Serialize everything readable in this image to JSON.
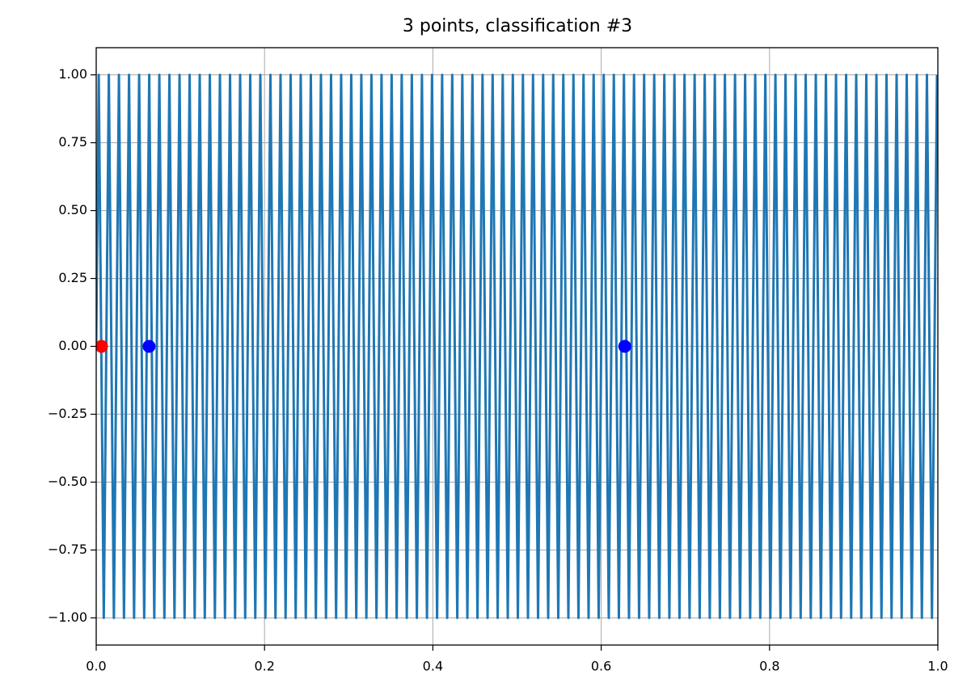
{
  "chart_data": {
    "type": "line",
    "title": "3 points, classification #3",
    "xlim": [
      0,
      1
    ],
    "ylim": [
      -1.1,
      1.1
    ],
    "grid": true,
    "xticks": [
      {
        "value": 0,
        "label": "0.0"
      },
      0.2,
      0.4,
      0.6,
      0.8,
      {
        "value": 1,
        "label": "1.0"
      }
    ],
    "yticks": [
      {
        "value": -1,
        "label": "−1.00"
      },
      {
        "value": -0.75,
        "label": "−0.75"
      },
      {
        "value": -0.5,
        "label": "−0.50"
      },
      {
        "value": -0.25,
        "label": "−0.25"
      },
      {
        "value": 0,
        "label": "0.00"
      },
      {
        "value": 0.25,
        "label": "0.25"
      },
      {
        "value": 0.5,
        "label": "0.50"
      },
      {
        "value": 0.75,
        "label": "0.75"
      },
      {
        "value": 1,
        "label": "1.00"
      }
    ],
    "series": [
      {
        "color": "#1f77b4",
        "x": [
          0,
          0.003,
          0.009,
          0.015,
          0.021,
          0.027,
          0.033,
          0.039,
          0.045,
          0.051,
          0.057,
          0.063,
          0.069,
          0.075,
          0.081,
          0.087,
          0.093,
          0.099,
          0.105,
          0.111,
          0.117,
          0.123,
          0.129,
          0.135,
          0.141,
          0.147,
          0.153,
          0.159,
          0.165,
          0.171,
          0.177,
          0.183,
          0.189,
          0.195,
          0.201,
          0.207,
          0.213,
          0.219,
          0.225,
          0.231,
          0.237,
          0.243,
          0.249,
          0.255,
          0.261,
          0.267,
          0.273,
          0.279,
          0.285,
          0.291,
          0.297,
          0.303,
          0.309,
          0.315,
          0.321,
          0.327,
          0.333,
          0.339,
          0.345,
          0.351,
          0.357,
          0.363,
          0.369,
          0.375,
          0.381,
          0.387,
          0.393,
          0.399,
          0.405,
          0.411,
          0.417,
          0.423,
          0.429,
          0.435,
          0.441,
          0.447,
          0.453,
          0.459,
          0.465,
          0.471,
          0.477,
          0.483,
          0.489,
          0.495,
          0.501,
          0.507,
          0.513,
          0.519,
          0.525,
          0.531,
          0.537,
          0.543,
          0.549,
          0.555,
          0.561,
          0.567,
          0.573,
          0.579,
          0.585,
          0.591,
          0.597,
          0.603,
          0.609,
          0.615,
          0.621,
          0.627,
          0.633,
          0.639,
          0.645,
          0.651,
          0.657,
          0.663,
          0.669,
          0.675,
          0.681,
          0.687,
          0.693,
          0.699,
          0.705,
          0.711,
          0.717,
          0.723,
          0.729,
          0.735,
          0.741,
          0.747,
          0.753,
          0.759,
          0.765,
          0.771,
          0.777,
          0.783,
          0.789,
          0.795,
          0.801,
          0.807,
          0.813,
          0.819,
          0.825,
          0.831,
          0.837,
          0.843,
          0.849,
          0.855,
          0.861,
          0.867,
          0.873,
          0.879,
          0.885,
          0.891,
          0.897,
          0.903,
          0.909,
          0.915,
          0.921,
          0.927,
          0.933,
          0.939,
          0.945,
          0.951,
          0.957,
          0.963,
          0.969,
          0.975,
          0.981,
          0.987,
          0.993,
          0.999
        ],
        "values": [
          0,
          1,
          -1,
          1,
          -1,
          1,
          -1,
          1,
          -1,
          1,
          -1,
          1,
          -1,
          1,
          -1,
          1,
          -1,
          1,
          -1,
          1,
          -1,
          1,
          -1,
          1,
          -1,
          1,
          -1,
          1,
          -1,
          1,
          -1,
          1,
          -1,
          1,
          -1,
          1,
          -1,
          1,
          -1,
          1,
          -1,
          1,
          -1,
          1,
          -1,
          1,
          -1,
          1,
          -1,
          1,
          -1,
          1,
          -1,
          1,
          -1,
          1,
          -1,
          1,
          -1,
          1,
          -1,
          1,
          -1,
          1,
          -1,
          1,
          -1,
          1,
          -1,
          1,
          -1,
          1,
          -1,
          1,
          -1,
          1,
          -1,
          1,
          -1,
          1,
          -1,
          1,
          -1,
          1,
          -1,
          1,
          -1,
          1,
          -1,
          1,
          -1,
          1,
          -1,
          1,
          -1,
          1,
          -1,
          1,
          -1,
          1,
          -1,
          1,
          -1,
          1,
          -1,
          1,
          -1,
          1,
          -1,
          1,
          -1,
          1,
          -1,
          1,
          -1,
          1,
          -1,
          1,
          -1,
          1,
          -1,
          1,
          -1,
          1,
          -1,
          1,
          -1,
          1,
          -1,
          1,
          -1,
          1,
          -1,
          1,
          -1,
          1,
          -1,
          1,
          -1,
          1,
          -1,
          1,
          -1,
          1,
          -1,
          1,
          -1,
          1,
          -1,
          1,
          -1,
          1,
          -1,
          1,
          -1,
          1,
          -1,
          1,
          -1,
          1,
          -1,
          1,
          -1,
          1,
          -1,
          1,
          -1,
          1
        ]
      }
    ],
    "points": {
      "x": [
        0.00628,
        0.0628,
        0.628
      ],
      "values": [
        0,
        0,
        0
      ],
      "colors": [
        "#ff0000",
        "#0000ff",
        "#0000ff"
      ]
    }
  }
}
